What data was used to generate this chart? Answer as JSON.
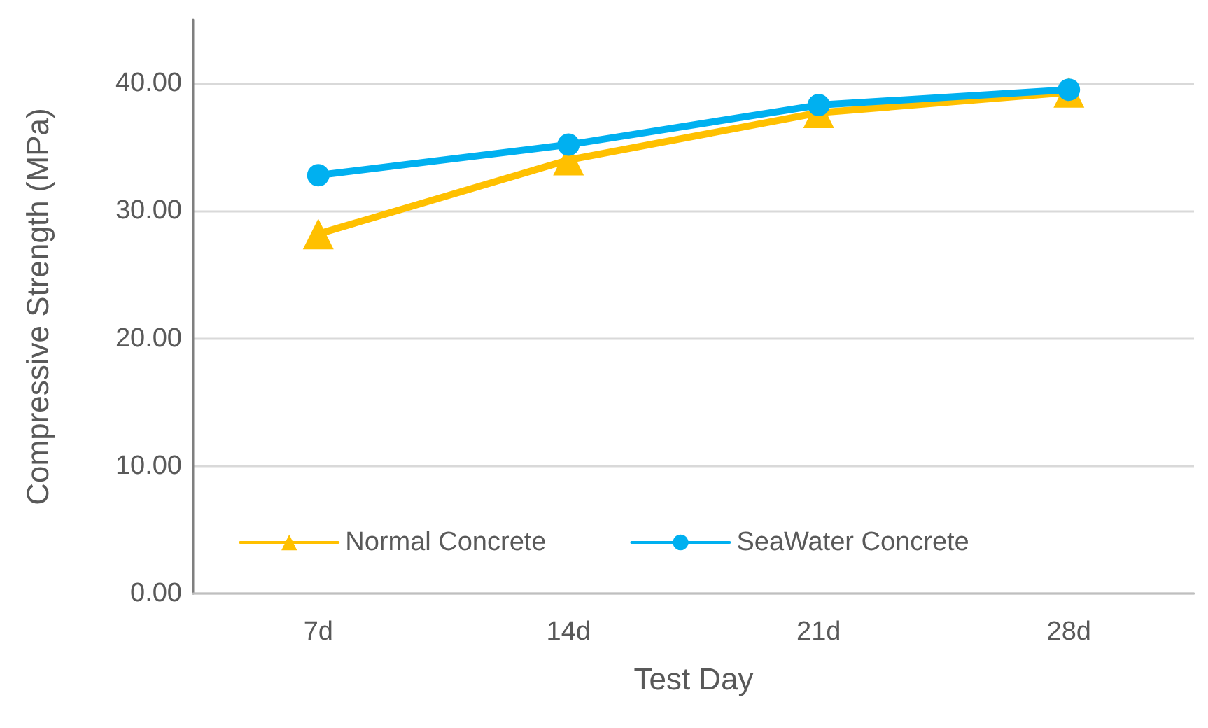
{
  "chart_data": {
    "type": "line",
    "xlabel": "Test Day",
    "ylabel": "Compressive Strength (MPa)",
    "categories": [
      "7d",
      "14d",
      "21d",
      "28d"
    ],
    "series": [
      {
        "name": "Normal Concrete",
        "color": "#ffc000",
        "marker": "triangle",
        "values": [
          28.2,
          34.0,
          37.7,
          39.3
        ]
      },
      {
        "name": "SeaWater Concrete",
        "color": "#00b0f0",
        "marker": "circle",
        "values": [
          32.8,
          35.2,
          38.3,
          39.5
        ]
      }
    ],
    "ylim": [
      0,
      45
    ],
    "yticks": [
      {
        "value": 0,
        "label": "0.00"
      },
      {
        "value": 10,
        "label": "10.00"
      },
      {
        "value": 20,
        "label": "20.00"
      },
      {
        "value": 30,
        "label": "30.00"
      },
      {
        "value": 40,
        "label": "40.00"
      }
    ],
    "grid": "y",
    "legend": "bottom",
    "line_style": "solid"
  }
}
